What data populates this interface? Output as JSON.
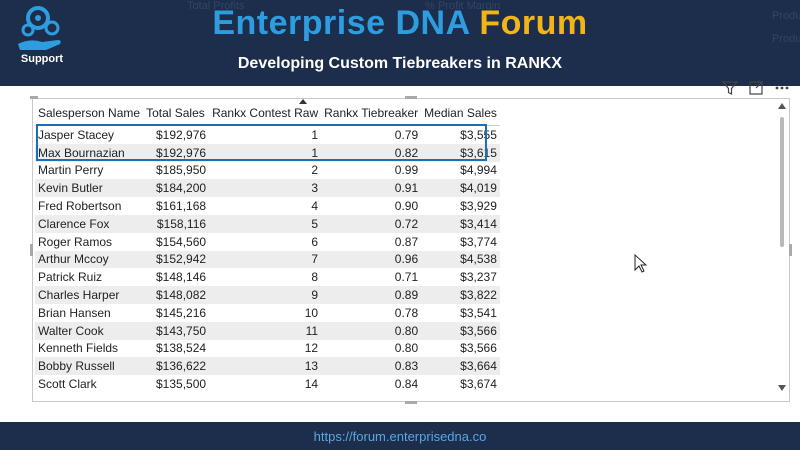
{
  "banner": {
    "support_label": "Support",
    "title_part1": "Enterprise DNA",
    "title_part2": "Forum",
    "subtitle": "Developing Custom Tiebreakers in RANKX",
    "bg_labels": [
      "Total Profits",
      "% Profit Margin",
      "Produ",
      "Produ"
    ]
  },
  "toolbar": {
    "icons": [
      "filter-icon",
      "focus-mode-icon",
      "more-options-icon"
    ]
  },
  "table": {
    "columns": [
      "Salesperson Name",
      "Total Sales",
      "Rankx Contest Raw",
      "Rankx Tiebreaker",
      "Median Sales"
    ],
    "rows": [
      [
        "Jasper Stacey",
        "$192,976",
        "1",
        "0.79",
        "$3,555"
      ],
      [
        "Max Bournazian",
        "$192,976",
        "1",
        "0.82",
        "$3,615"
      ],
      [
        "Martin Perry",
        "$185,950",
        "2",
        "0.99",
        "$4,994"
      ],
      [
        "Kevin Butler",
        "$184,200",
        "3",
        "0.91",
        "$4,019"
      ],
      [
        "Fred Robertson",
        "$161,168",
        "4",
        "0.90",
        "$3,929"
      ],
      [
        "Clarence Fox",
        "$158,116",
        "5",
        "0.72",
        "$3,414"
      ],
      [
        "Roger Ramos",
        "$154,560",
        "6",
        "0.87",
        "$3,774"
      ],
      [
        "Arthur Mccoy",
        "$152,942",
        "7",
        "0.96",
        "$4,538"
      ],
      [
        "Patrick Ruiz",
        "$148,146",
        "8",
        "0.71",
        "$3,237"
      ],
      [
        "Charles Harper",
        "$148,082",
        "9",
        "0.89",
        "$3,822"
      ],
      [
        "Brian Hansen",
        "$145,216",
        "10",
        "0.78",
        "$3,541"
      ],
      [
        "Walter Cook",
        "$143,750",
        "11",
        "0.80",
        "$3,566"
      ],
      [
        "Kenneth Fields",
        "$138,524",
        "12",
        "0.80",
        "$3,566"
      ],
      [
        "Bobby Russell",
        "$136,622",
        "13",
        "0.83",
        "$3,664"
      ],
      [
        "Scott Clark",
        "$135,500",
        "14",
        "0.84",
        "$3,674"
      ]
    ]
  },
  "footer": {
    "url": "https://forum.enterprisedna.co"
  },
  "colors": {
    "banner_bg": "#1c2e4c",
    "title_blue": "#2e9de0",
    "title_gold": "#f2b417",
    "highlight_border": "#1d6fb3"
  }
}
